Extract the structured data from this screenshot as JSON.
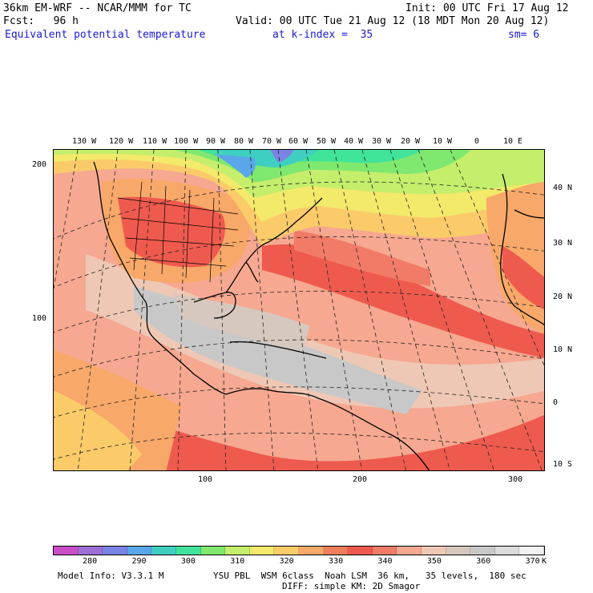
{
  "header": {
    "model": "36km EM-WRF -- NCAR/MMM for TC",
    "init": "Init: 00 UTC Fri 17 Aug 12",
    "fcst": "Fcst:   96 h",
    "valid": "Valid: 00 UTC Tue 21 Aug 12 (18 MDT Mon 20 Aug 12)",
    "field": "Equivalent potential temperature",
    "level": "at k-index =  35",
    "smoothing": "sm= 6"
  },
  "map": {
    "top_lon_labels": [
      "130 W",
      "120 W",
      "110 W",
      "100 W",
      "90 W",
      "80 W",
      "70 W",
      "60 W",
      "50 W",
      "40 W",
      "30 W",
      "20 W",
      "10 W",
      "0",
      "10 E"
    ],
    "right_lat_labels": [
      "40 N",
      "30 N",
      "20 N",
      "10 N",
      "0",
      "10 S"
    ],
    "left_grid_labels": [
      "200",
      "100"
    ],
    "bottom_grid_labels": [
      "100",
      "200",
      "300"
    ]
  },
  "colorbar": {
    "colors": [
      "#c94fc9",
      "#9b6fd6",
      "#7a82e3",
      "#5aa6ea",
      "#3fcfc0",
      "#40e39a",
      "#7fe86e",
      "#c4ee6c",
      "#f3e96a",
      "#fbcb6a",
      "#f8a868",
      "#f17d5c",
      "#ef5a4e",
      "#f27b68",
      "#f6a890",
      "#eec8b4",
      "#d6c8be",
      "#c8c8c8",
      "#dcdcdc",
      "#f2f2f2"
    ],
    "tick_labels": [
      "280",
      "290",
      "300",
      "310",
      "320",
      "330",
      "340",
      "350",
      "360",
      "370"
    ],
    "unit": "K"
  },
  "footer": {
    "model_info": "Model Info: V3.3.1 M",
    "physics_line1": "YSU PBL  WSM 6class  Noah LSM  36 km,   35 levels,  180 sec",
    "physics_line2": "DIFF: simple KM: 2D Smagor"
  }
}
